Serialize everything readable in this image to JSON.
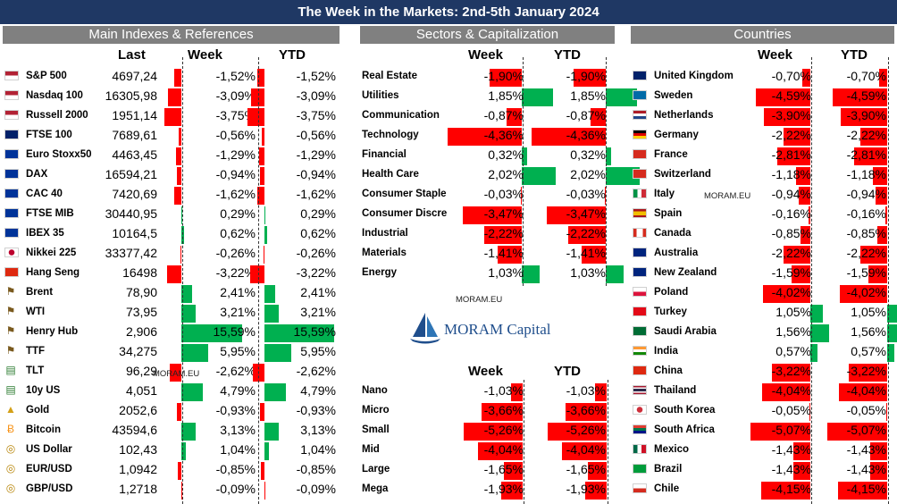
{
  "title": "The Week in the Markets: 2nd-5th January 2024",
  "sections": {
    "indexes": "Main Indexes & References",
    "sectors": "Sectors & Capitalization",
    "countries": "Countries"
  },
  "columns": {
    "last": "Last",
    "week": "Week",
    "ytd": "YTD"
  },
  "colors": {
    "negative": "#ff0000",
    "positive": "#00b050",
    "title_bg": "#1f3864",
    "header_bg": "#808080"
  },
  "watermarks": [
    "MORAM.EU",
    "MORAM.EU",
    "MORAM.EU"
  ],
  "logo": {
    "text": "MORAM Capital"
  },
  "indexes": [
    {
      "name": "S&P 500",
      "last": "4697,24",
      "week": "-1,52%",
      "ytd": "-1,52%",
      "w": -1.52,
      "y": -1.52,
      "icon": "us-flag"
    },
    {
      "name": "Nasdaq 100",
      "last": "16305,98",
      "week": "-3,09%",
      "ytd": "-3,09%",
      "w": -3.09,
      "y": -3.09,
      "icon": "us-flag"
    },
    {
      "name": "Russell 2000",
      "last": "1951,14",
      "week": "-3,75%",
      "ytd": "-3,75%",
      "w": -3.75,
      "y": -3.75,
      "icon": "us-flag"
    },
    {
      "name": "FTSE 100",
      "last": "7689,61",
      "week": "-0,56%",
      "ytd": "-0,56%",
      "w": -0.56,
      "y": -0.56,
      "icon": "uk-flag"
    },
    {
      "name": "Euro Stoxx50",
      "last": "4463,45",
      "week": "-1,29%",
      "ytd": "-1,29%",
      "w": -1.29,
      "y": -1.29,
      "icon": "eu-flag"
    },
    {
      "name": "DAX",
      "last": "16594,21",
      "week": "-0,94%",
      "ytd": "-0,94%",
      "w": -0.94,
      "y": -0.94,
      "icon": "eu-flag"
    },
    {
      "name": "CAC 40",
      "last": "7420,69",
      "week": "-1,62%",
      "ytd": "-1,62%",
      "w": -1.62,
      "y": -1.62,
      "icon": "eu-flag"
    },
    {
      "name": "FTSE MIB",
      "last": "30440,95",
      "week": "0,29%",
      "ytd": "0,29%",
      "w": 0.29,
      "y": 0.29,
      "icon": "eu-flag"
    },
    {
      "name": "IBEX 35",
      "last": "10164,5",
      "week": "0,62%",
      "ytd": "0,62%",
      "w": 0.62,
      "y": 0.62,
      "icon": "eu-flag"
    },
    {
      "name": "Nikkei 225",
      "last": "33377,42",
      "week": "-0,26%",
      "ytd": "-0,26%",
      "w": -0.26,
      "y": -0.26,
      "icon": "japan-flag"
    },
    {
      "name": "Hang Seng",
      "last": "16498",
      "week": "-3,22%",
      "ytd": "-3,22%",
      "w": -3.22,
      "y": -3.22,
      "icon": "hongkong-flag"
    },
    {
      "name": "Brent",
      "last": "78,90",
      "week": "2,41%",
      "ytd": "2,41%",
      "w": 2.41,
      "y": 2.41,
      "icon": "oil-derrick-icon"
    },
    {
      "name": "WTI",
      "last": "73,95",
      "week": "3,21%",
      "ytd": "3,21%",
      "w": 3.21,
      "y": 3.21,
      "icon": "oil-derrick-icon"
    },
    {
      "name": "Henry Hub",
      "last": "2,906",
      "week": "15,59%",
      "ytd": "15,59%",
      "w": 15.59,
      "y": 15.59,
      "icon": "oil-derrick-icon"
    },
    {
      "name": "TTF",
      "last": "34,275",
      "week": "5,95%",
      "ytd": "5,95%",
      "w": 5.95,
      "y": 5.95,
      "icon": "oil-derrick-icon"
    },
    {
      "name": "TLT",
      "last": "96,29",
      "week": "-2,62%",
      "ytd": "-2,62%",
      "w": -2.62,
      "y": -2.62,
      "icon": "banknote-icon"
    },
    {
      "name": "10y US",
      "last": "4,051",
      "week": "4,79%",
      "ytd": "4,79%",
      "w": 4.79,
      "y": 4.79,
      "icon": "banknote-icon"
    },
    {
      "name": "Gold",
      "last": "2052,6",
      "week": "-0,93%",
      "ytd": "-0,93%",
      "w": -0.93,
      "y": -0.93,
      "icon": "gold-icon"
    },
    {
      "name": "Bitcoin",
      "last": "43594,6",
      "week": "3,13%",
      "ytd": "3,13%",
      "w": 3.13,
      "y": 3.13,
      "icon": "bitcoin-icon"
    },
    {
      "name": "US Dollar",
      "last": "102,43",
      "week": "1,04%",
      "ytd": "1,04%",
      "w": 1.04,
      "y": 1.04,
      "icon": "coins-icon"
    },
    {
      "name": "EUR/USD",
      "last": "1,0942",
      "week": "-0,85%",
      "ytd": "-0,85%",
      "w": -0.85,
      "y": -0.85,
      "icon": "coins-icon"
    },
    {
      "name": "GBP/USD",
      "last": "1,2718",
      "week": "-0,09%",
      "ytd": "-0,09%",
      "w": -0.09,
      "y": -0.09,
      "icon": "coins-icon"
    }
  ],
  "sectors": [
    {
      "name": "Real Estate",
      "week": "-1,90%",
      "ytd": "-1,90%",
      "w": -1.9,
      "y": -1.9
    },
    {
      "name": "Utilities",
      "week": "1,85%",
      "ytd": "1,85%",
      "w": 1.85,
      "y": 1.85
    },
    {
      "name": "Communication",
      "week": "-0,87%",
      "ytd": "-0,87%",
      "w": -0.87,
      "y": -0.87
    },
    {
      "name": "Technology",
      "week": "-4,36%",
      "ytd": "-4,36%",
      "w": -4.36,
      "y": -4.36
    },
    {
      "name": "Financial",
      "week": "0,32%",
      "ytd": "0,32%",
      "w": 0.32,
      "y": 0.32
    },
    {
      "name": "Health Care",
      "week": "2,02%",
      "ytd": "2,02%",
      "w": 2.02,
      "y": 2.02
    },
    {
      "name": "Consumer Staple",
      "week": "-0,03%",
      "ytd": "-0,03%",
      "w": -0.03,
      "y": -0.03
    },
    {
      "name": "Consumer Discre",
      "week": "-3,47%",
      "ytd": "-3,47%",
      "w": -3.47,
      "y": -3.47
    },
    {
      "name": "Industrial",
      "week": "-2,22%",
      "ytd": "-2,22%",
      "w": -2.22,
      "y": -2.22
    },
    {
      "name": "Materials",
      "week": "-1,41%",
      "ytd": "-1,41%",
      "w": -1.41,
      "y": -1.41
    },
    {
      "name": "Energy",
      "week": "1,03%",
      "ytd": "1,03%",
      "w": 1.03,
      "y": 1.03
    }
  ],
  "caps": [
    {
      "name": "Nano",
      "week": "-1,03%",
      "ytd": "-1,03%",
      "w": -1.03,
      "y": -1.03
    },
    {
      "name": "Micro",
      "week": "-3,66%",
      "ytd": "-3,66%",
      "w": -3.66,
      "y": -3.66
    },
    {
      "name": "Small",
      "week": "-5,26%",
      "ytd": "-5,26%",
      "w": -5.26,
      "y": -5.26
    },
    {
      "name": "Mid",
      "week": "-4,04%",
      "ytd": "-4,04%",
      "w": -4.04,
      "y": -4.04
    },
    {
      "name": "Large",
      "week": "-1,65%",
      "ytd": "-1,65%",
      "w": -1.65,
      "y": -1.65
    },
    {
      "name": "Mega",
      "week": "-1,93%",
      "ytd": "-1,93%",
      "w": -1.93,
      "y": -1.93
    }
  ],
  "countries": [
    {
      "name": "United Kingdom",
      "week": "-0,70%",
      "ytd": "-0,70%",
      "w": -0.7,
      "y": -0.7,
      "icon": "uk-flag"
    },
    {
      "name": "Sweden",
      "week": "-4,59%",
      "ytd": "-4,59%",
      "w": -4.59,
      "y": -4.59,
      "icon": "sweden-flag"
    },
    {
      "name": "Netherlands",
      "week": "-3,90%",
      "ytd": "-3,90%",
      "w": -3.9,
      "y": -3.9,
      "icon": "netherlands-flag"
    },
    {
      "name": "Germany",
      "week": "-2,22%",
      "ytd": "-2,22%",
      "w": -2.22,
      "y": -2.22,
      "icon": "germany-flag"
    },
    {
      "name": "France",
      "week": "-2,81%",
      "ytd": "-2,81%",
      "w": -2.81,
      "y": -2.81,
      "icon": "switzerland-flag"
    },
    {
      "name": "Switzerland",
      "week": "-1,18%",
      "ytd": "-1,18%",
      "w": -1.18,
      "y": -1.18,
      "icon": "switzerland-flag"
    },
    {
      "name": "Italy",
      "week": "-0,94%",
      "ytd": "-0,94%",
      "w": -0.94,
      "y": -0.94,
      "icon": "italy-flag"
    },
    {
      "name": "Spain",
      "week": "-0,16%",
      "ytd": "-0,16%",
      "w": -0.16,
      "y": -0.16,
      "icon": "spain-flag"
    },
    {
      "name": "Canada",
      "week": "-0,85%",
      "ytd": "-0,85%",
      "w": -0.85,
      "y": -0.85,
      "icon": "canada-flag"
    },
    {
      "name": "Australia",
      "week": "-2,22%",
      "ytd": "-2,22%",
      "w": -2.22,
      "y": -2.22,
      "icon": "australia-flag"
    },
    {
      "name": "New Zealand",
      "week": "-1,59%",
      "ytd": "-1,59%",
      "w": -1.59,
      "y": -1.59,
      "icon": "newzealand-flag"
    },
    {
      "name": "Poland",
      "week": "-4,02%",
      "ytd": "-4,02%",
      "w": -4.02,
      "y": -4.02,
      "icon": "poland-flag"
    },
    {
      "name": "Turkey",
      "week": "1,05%",
      "ytd": "1,05%",
      "w": 1.05,
      "y": 1.05,
      "icon": "turkey-flag"
    },
    {
      "name": "Saudi Arabia",
      "week": "1,56%",
      "ytd": "1,56%",
      "w": 1.56,
      "y": 1.56,
      "icon": "saudi-flag"
    },
    {
      "name": "India",
      "week": "0,57%",
      "ytd": "0,57%",
      "w": 0.57,
      "y": 0.57,
      "icon": "india-flag"
    },
    {
      "name": "China",
      "week": "-3,22%",
      "ytd": "-3,22%",
      "w": -3.22,
      "y": -3.22,
      "icon": "china-flag"
    },
    {
      "name": "Thailand",
      "week": "-4,04%",
      "ytd": "-4,04%",
      "w": -4.04,
      "y": -4.04,
      "icon": "thailand-flag"
    },
    {
      "name": "South Korea",
      "week": "-0,05%",
      "ytd": "-0,05%",
      "w": -0.05,
      "y": -0.05,
      "icon": "korea-flag"
    },
    {
      "name": "South Africa",
      "week": "-5,07%",
      "ytd": "-5,07%",
      "w": -5.07,
      "y": -5.07,
      "icon": "southafrica-flag"
    },
    {
      "name": "Mexico",
      "week": "-1,43%",
      "ytd": "-1,43%",
      "w": -1.43,
      "y": -1.43,
      "icon": "mexico-flag"
    },
    {
      "name": "Brazil",
      "week": "-1,43%",
      "ytd": "-1,43%",
      "w": -1.43,
      "y": -1.43,
      "icon": "brazil-flag"
    },
    {
      "name": "Chile",
      "week": "-4,15%",
      "ytd": "-4,15%",
      "w": -4.15,
      "y": -4.15,
      "icon": "chile-flag"
    }
  ]
}
